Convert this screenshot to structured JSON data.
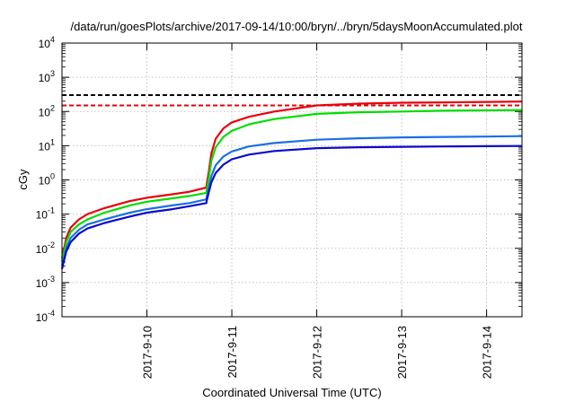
{
  "chart_data": {
    "type": "line",
    "title": "/data/run/goesPlots/archive/2017-09-14/10:00/bryn/../bryn/5daysMoonAccumulated.plot",
    "xlabel": "Coordinated Universal Time (UTC)",
    "ylabel": "cGy",
    "y_scale": "log",
    "grid": true,
    "legend": "none",
    "xlim": [
      "2017-09-09 00:00",
      "2017-09-14 10:00"
    ],
    "ylim": [
      0.0001,
      10000
    ],
    "x_ticks": [
      {
        "date": "2017-09-10 00:00",
        "label": "2017-9-10"
      },
      {
        "date": "2017-09-11 00:00",
        "label": "2017-9-11"
      },
      {
        "date": "2017-09-12 00:00",
        "label": "2017-9-12"
      },
      {
        "date": "2017-09-13 00:00",
        "label": "2017-9-13"
      },
      {
        "date": "2017-09-14 00:00",
        "label": "2017-9-14"
      }
    ],
    "y_ticks": [
      {
        "value": 0.0001,
        "base": "10",
        "exp": "-4"
      },
      {
        "value": 0.001,
        "base": "10",
        "exp": "-3"
      },
      {
        "value": 0.01,
        "base": "10",
        "exp": "-2"
      },
      {
        "value": 0.1,
        "base": "10",
        "exp": "-1"
      },
      {
        "value": 1,
        "base": "10",
        "exp": "0"
      },
      {
        "value": 10,
        "base": "10",
        "exp": "1"
      },
      {
        "value": 100,
        "base": "10",
        "exp": "2"
      },
      {
        "value": 1000,
        "base": "10",
        "exp": "3"
      },
      {
        "value": 10000,
        "base": "10",
        "exp": "4"
      }
    ],
    "reference_lines": [
      {
        "value": 300,
        "color": "#000000",
        "style": "dashed"
      },
      {
        "value": 150,
        "color": "#e8000b",
        "style": "dashed"
      }
    ],
    "series": [
      {
        "color": "#e8000b",
        "points": [
          [
            "2017-09-09 00:00",
            0.005
          ],
          [
            "2017-09-09 01:12",
            0.02
          ],
          [
            "2017-09-09 02:24",
            0.04
          ],
          [
            "2017-09-09 04:48",
            0.07
          ],
          [
            "2017-09-09 07:12",
            0.1
          ],
          [
            "2017-09-09 12:00",
            0.15
          ],
          [
            "2017-09-09 19:12",
            0.24
          ],
          [
            "2017-09-10 00:00",
            0.3
          ],
          [
            "2017-09-10 07:12",
            0.38
          ],
          [
            "2017-09-10 12:00",
            0.45
          ],
          [
            "2017-09-10 16:48",
            0.6
          ],
          [
            "2017-09-10 16:52",
            0.72
          ],
          [
            "2017-09-10 17:31",
            1.8
          ],
          [
            "2017-09-10 18:14",
            6.0
          ],
          [
            "2017-09-10 19:26",
            16
          ],
          [
            "2017-09-10 21:36",
            32
          ],
          [
            "2017-09-11 00:00",
            48
          ],
          [
            "2017-09-11 04:48",
            70
          ],
          [
            "2017-09-11 12:00",
            100
          ],
          [
            "2017-09-12 00:00",
            150
          ],
          [
            "2017-09-12 12:00",
            170
          ],
          [
            "2017-09-13 00:00",
            180
          ],
          [
            "2017-09-13 12:00",
            185
          ],
          [
            "2017-09-14 00:00",
            190
          ],
          [
            "2017-09-14 10:00",
            195
          ]
        ]
      },
      {
        "color": "#00dd00",
        "points": [
          [
            "2017-09-09 00:00",
            0.004
          ],
          [
            "2017-09-09 01:12",
            0.015
          ],
          [
            "2017-09-09 02:24",
            0.03
          ],
          [
            "2017-09-09 04:48",
            0.05
          ],
          [
            "2017-09-09 07:12",
            0.07
          ],
          [
            "2017-09-09 12:00",
            0.11
          ],
          [
            "2017-09-09 19:12",
            0.18
          ],
          [
            "2017-09-10 00:00",
            0.23
          ],
          [
            "2017-09-10 07:12",
            0.29
          ],
          [
            "2017-09-10 12:00",
            0.34
          ],
          [
            "2017-09-10 16:48",
            0.42
          ],
          [
            "2017-09-10 16:52",
            0.5
          ],
          [
            "2017-09-10 17:31",
            1.2
          ],
          [
            "2017-09-10 18:14",
            3.7
          ],
          [
            "2017-09-10 19:26",
            9.0
          ],
          [
            "2017-09-10 21:36",
            18
          ],
          [
            "2017-09-11 00:00",
            27
          ],
          [
            "2017-09-11 04:48",
            42
          ],
          [
            "2017-09-11 12:00",
            60
          ],
          [
            "2017-09-12 00:00",
            85
          ],
          [
            "2017-09-12 12:00",
            95
          ],
          [
            "2017-09-13 00:00",
            100
          ],
          [
            "2017-09-13 12:00",
            105
          ],
          [
            "2017-09-14 00:00",
            108
          ],
          [
            "2017-09-14 10:00",
            110
          ]
        ]
      },
      {
        "color": "#1a6fe6",
        "points": [
          [
            "2017-09-09 00:00",
            0.003
          ],
          [
            "2017-09-09 01:12",
            0.01
          ],
          [
            "2017-09-09 02:24",
            0.02
          ],
          [
            "2017-09-09 04:48",
            0.035
          ],
          [
            "2017-09-09 07:12",
            0.05
          ],
          [
            "2017-09-09 12:00",
            0.07
          ],
          [
            "2017-09-09 19:12",
            0.11
          ],
          [
            "2017-09-10 00:00",
            0.14
          ],
          [
            "2017-09-10 07:12",
            0.18
          ],
          [
            "2017-09-10 12:00",
            0.21
          ],
          [
            "2017-09-10 16:48",
            0.27
          ],
          [
            "2017-09-10 16:52",
            0.32
          ],
          [
            "2017-09-10 17:31",
            0.6
          ],
          [
            "2017-09-10 18:14",
            1.3
          ],
          [
            "2017-09-10 19:26",
            2.7
          ],
          [
            "2017-09-10 21:36",
            4.8
          ],
          [
            "2017-09-11 00:00",
            6.8
          ],
          [
            "2017-09-11 04:48",
            9.5
          ],
          [
            "2017-09-11 12:00",
            12
          ],
          [
            "2017-09-12 00:00",
            15
          ],
          [
            "2017-09-12 12:00",
            16.5
          ],
          [
            "2017-09-13 00:00",
            17.5
          ],
          [
            "2017-09-13 12:00",
            18
          ],
          [
            "2017-09-14 00:00",
            18.5
          ],
          [
            "2017-09-14 10:00",
            19
          ]
        ]
      },
      {
        "color": "#0a0acc",
        "points": [
          [
            "2017-09-09 00:00",
            0.0025
          ],
          [
            "2017-09-09 01:12",
            0.008
          ],
          [
            "2017-09-09 02:24",
            0.015
          ],
          [
            "2017-09-09 04:48",
            0.027
          ],
          [
            "2017-09-09 07:12",
            0.038
          ],
          [
            "2017-09-09 12:00",
            0.055
          ],
          [
            "2017-09-09 19:12",
            0.085
          ],
          [
            "2017-09-10 00:00",
            0.11
          ],
          [
            "2017-09-10 07:12",
            0.14
          ],
          [
            "2017-09-10 12:00",
            0.17
          ],
          [
            "2017-09-10 16:48",
            0.21
          ],
          [
            "2017-09-10 16:52",
            0.24
          ],
          [
            "2017-09-10 17:31",
            0.45
          ],
          [
            "2017-09-10 18:14",
            0.85
          ],
          [
            "2017-09-10 19:26",
            1.6
          ],
          [
            "2017-09-10 21:36",
            2.8
          ],
          [
            "2017-09-11 00:00",
            4.0
          ],
          [
            "2017-09-11 04:48",
            5.5
          ],
          [
            "2017-09-11 12:00",
            7.0
          ],
          [
            "2017-09-12 00:00",
            8.5
          ],
          [
            "2017-09-12 12:00",
            9.0
          ],
          [
            "2017-09-13 00:00",
            9.3
          ],
          [
            "2017-09-13 12:00",
            9.5
          ],
          [
            "2017-09-14 00:00",
            9.7
          ],
          [
            "2017-09-14 10:00",
            9.8
          ]
        ]
      }
    ]
  }
}
